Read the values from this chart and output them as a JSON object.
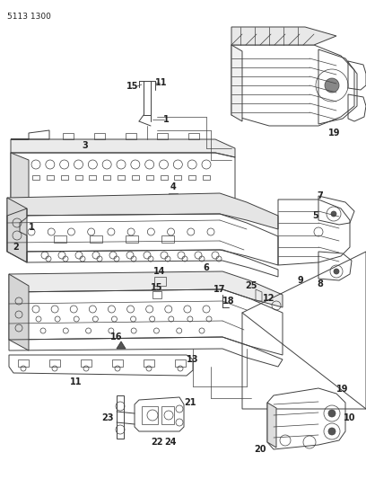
{
  "part_number": "5113 1300",
  "background_color": "#ffffff",
  "line_color": "#404040",
  "fig_width": 4.08,
  "fig_height": 5.33,
  "dpi": 100,
  "label_fontsize": 7,
  "label_bold": true
}
